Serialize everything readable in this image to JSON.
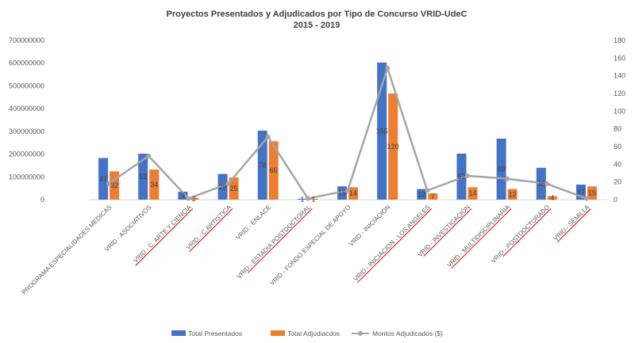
{
  "chart_data": {
    "type": "bar",
    "title": "Proyectos Presentados y Adjudicados por Tipo de Concurso VRID-UdeC",
    "subtitle": "2015 - 2019",
    "categories": [
      "PROGRAMA ESPECIALIDADES MEDICAS",
      "VRID - ASOCIATIVOS",
      "VRID - C. ARTE Y CIENCIA",
      "VRID - C.ARTISTICA",
      "VRID - ENLACE",
      "VRID - ESTADIA POSTDOCTORAL",
      "VRID - FONDO ESPECIAL DE APOYO",
      "VRID - INICIACION",
      "VRID - INICIACIÓN - LOS ANGELES",
      "VRID - INVESTIGACIÓN",
      "VRID - MULTIDISCIPLINARIA",
      "VRID - POSTDOCTORADO",
      "VRID - SEMILLA"
    ],
    "underlined_categories": [
      2,
      3,
      5,
      8,
      9,
      10,
      11,
      12
    ],
    "series": [
      {
        "name": "Total Presentados",
        "axis": "right",
        "color": "#4472C4",
        "values": [
          47,
          52,
          9,
          29,
          78,
          1,
          15,
          155,
          12,
          52,
          69,
          36,
          17
        ]
      },
      {
        "name": "Total Adjudiacdos",
        "axis": "right",
        "color": "#ED7D31",
        "values": [
          32,
          34,
          2,
          25,
          66,
          1,
          14,
          120,
          7,
          14,
          12,
          4,
          15
        ]
      },
      {
        "name": "Montos Adjudicados ($)",
        "type": "line",
        "axis": "left",
        "color": "#A5A5A5",
        "values": [
          70000000,
          192000000,
          5000000,
          70000000,
          276000000,
          5000000,
          40000000,
          578000000,
          40000000,
          105000000,
          92000000,
          70000000,
          5000000
        ]
      }
    ],
    "y_left": {
      "min": 0,
      "max": 700000000,
      "ticks": [
        "0",
        "100000000",
        "200000000",
        "300000000",
        "400000000",
        "500000000",
        "600000000",
        "700000000"
      ]
    },
    "y_right": {
      "min": 0,
      "max": 180,
      "ticks": [
        "0",
        "20",
        "40",
        "60",
        "80",
        "100",
        "120",
        "140",
        "160",
        "180"
      ]
    },
    "legend_position": "bottom",
    "grid": false
  }
}
